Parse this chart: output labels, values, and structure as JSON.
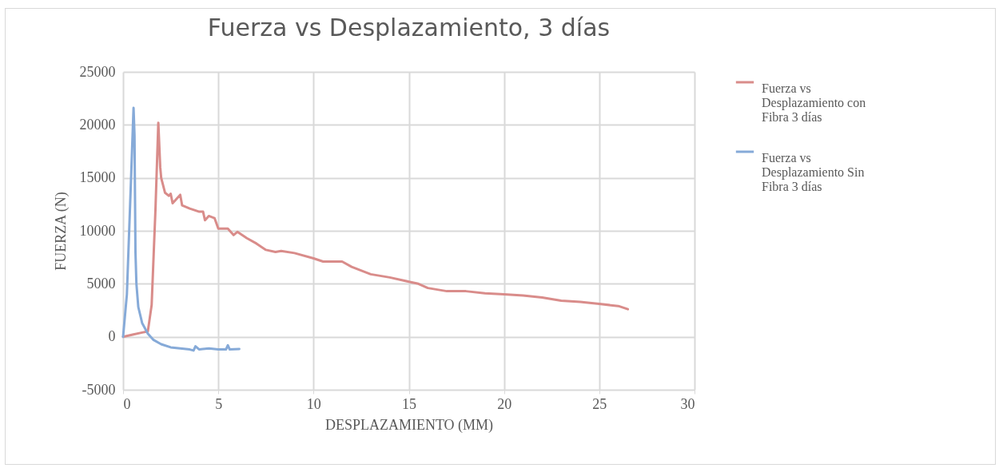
{
  "chart_data": {
    "type": "line",
    "title": "Fuerza vs Desplazamiento, 3 días",
    "xlabel": "DESPLAZAMIENTO (MM)",
    "ylabel": "FUERZA (N)",
    "xlim": [
      0,
      30
    ],
    "xticks": [
      0,
      5,
      10,
      15,
      20,
      25,
      30
    ],
    "ylim": [
      -5000,
      25000
    ],
    "yticks": [
      -5000,
      0,
      5000,
      10000,
      15000,
      20000,
      25000
    ],
    "grid": true,
    "legend": "right",
    "marker": "none",
    "line_style": "solid",
    "series": [
      {
        "name": "Fuerza vs Desplazamiento con Fibra 3 días",
        "color": "#d98c8a",
        "x": [
          0,
          0.5,
          1.0,
          1.3,
          1.5,
          1.7,
          1.85,
          1.95,
          2.0,
          2.2,
          2.4,
          2.5,
          2.6,
          2.8,
          3.0,
          3.1,
          3.5,
          4.0,
          4.2,
          4.3,
          4.5,
          4.8,
          5.0,
          5.5,
          5.8,
          6.0,
          6.5,
          7.0,
          7.5,
          8.0,
          8.3,
          9.0,
          10.0,
          10.5,
          11.5,
          12.0,
          13.0,
          14.0,
          15.0,
          15.5,
          16.0,
          17.0,
          18.0,
          19.0,
          20.0,
          21.0,
          22.0,
          23.0,
          24.0,
          25.0,
          26.0,
          26.5
        ],
        "values": [
          0,
          200,
          400,
          500,
          3000,
          12000,
          20200,
          16000,
          15000,
          13600,
          13300,
          13500,
          12600,
          13000,
          13400,
          12400,
          12100,
          11800,
          11800,
          11000,
          11400,
          11200,
          10200,
          10200,
          9600,
          9900,
          9300,
          8800,
          8200,
          8000,
          8100,
          7900,
          7400,
          7100,
          7100,
          6600,
          5900,
          5600,
          5200,
          5000,
          4600,
          4300,
          4300,
          4100,
          4000,
          3900,
          3700,
          3400,
          3300,
          3100,
          2900,
          2600
        ]
      },
      {
        "name": "Fuerza vs Desplazamiento Sin Fibra 3 días",
        "color": "#86aad8",
        "x": [
          0,
          0.2,
          0.4,
          0.55,
          0.6,
          0.65,
          0.7,
          0.8,
          1.0,
          1.3,
          1.6,
          2.0,
          2.5,
          3.0,
          3.5,
          3.7,
          3.8,
          4.0,
          4.5,
          5.0,
          5.4,
          5.5,
          5.6,
          6.1
        ],
        "values": [
          0,
          4000,
          14000,
          21600,
          19000,
          8000,
          5000,
          2800,
          1300,
          300,
          -300,
          -700,
          -1000,
          -1100,
          -1200,
          -1300,
          -900,
          -1200,
          -1100,
          -1200,
          -1200,
          -800,
          -1200,
          -1150
        ]
      }
    ]
  }
}
